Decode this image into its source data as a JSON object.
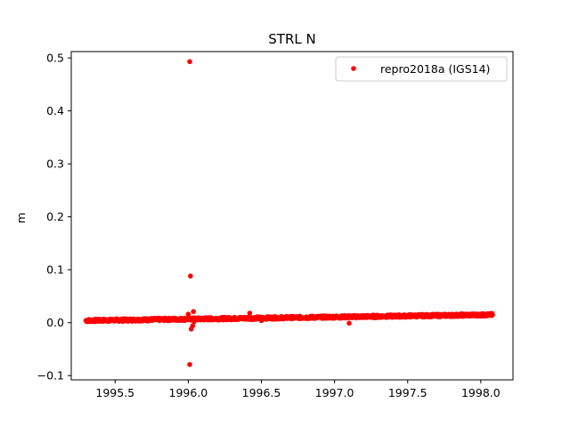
{
  "chart_data": {
    "type": "scatter",
    "title": "STRL N",
    "xlabel": "",
    "ylabel": "m",
    "xlim": [
      1995.2,
      1998.22
    ],
    "ylim": [
      -0.108,
      0.512
    ],
    "xticks": [
      1995.5,
      1996.0,
      1996.5,
      1997.0,
      1997.5,
      1998.0
    ],
    "xtick_labels": [
      "1995.5",
      "1996.0",
      "1996.5",
      "1997.0",
      "1997.5",
      "1998.0"
    ],
    "yticks": [
      -0.1,
      0.0,
      0.1,
      0.2,
      0.3,
      0.4,
      0.5
    ],
    "ytick_labels": [
      "−0.1",
      "0.0",
      "0.1",
      "0.2",
      "0.3",
      "0.4",
      "0.5"
    ],
    "grid": false,
    "legend_position": "top-right",
    "series": [
      {
        "name": "repro2018a (IGS14)",
        "color": "#ff0000",
        "marker": "circle",
        "trend": {
          "x_start": 1995.3,
          "x_end": 1998.08,
          "y_start": 0.004,
          "y_end": 0.015,
          "scatter": 0.0025,
          "count": 1000
        },
        "points": [
          {
            "x": 1996.01,
            "y": 0.493
          },
          {
            "x": 1996.015,
            "y": 0.088
          },
          {
            "x": 1996.01,
            "y": -0.079
          },
          {
            "x": 1996.02,
            "y": -0.012
          },
          {
            "x": 1996.03,
            "y": -0.006
          },
          {
            "x": 1996.035,
            "y": 0.021
          },
          {
            "x": 1996.0,
            "y": 0.016
          },
          {
            "x": 1996.04,
            "y": 0.002
          },
          {
            "x": 1996.42,
            "y": 0.018
          },
          {
            "x": 1997.1,
            "y": -0.001
          },
          {
            "x": 1996.5,
            "y": 0.004
          }
        ]
      }
    ]
  }
}
